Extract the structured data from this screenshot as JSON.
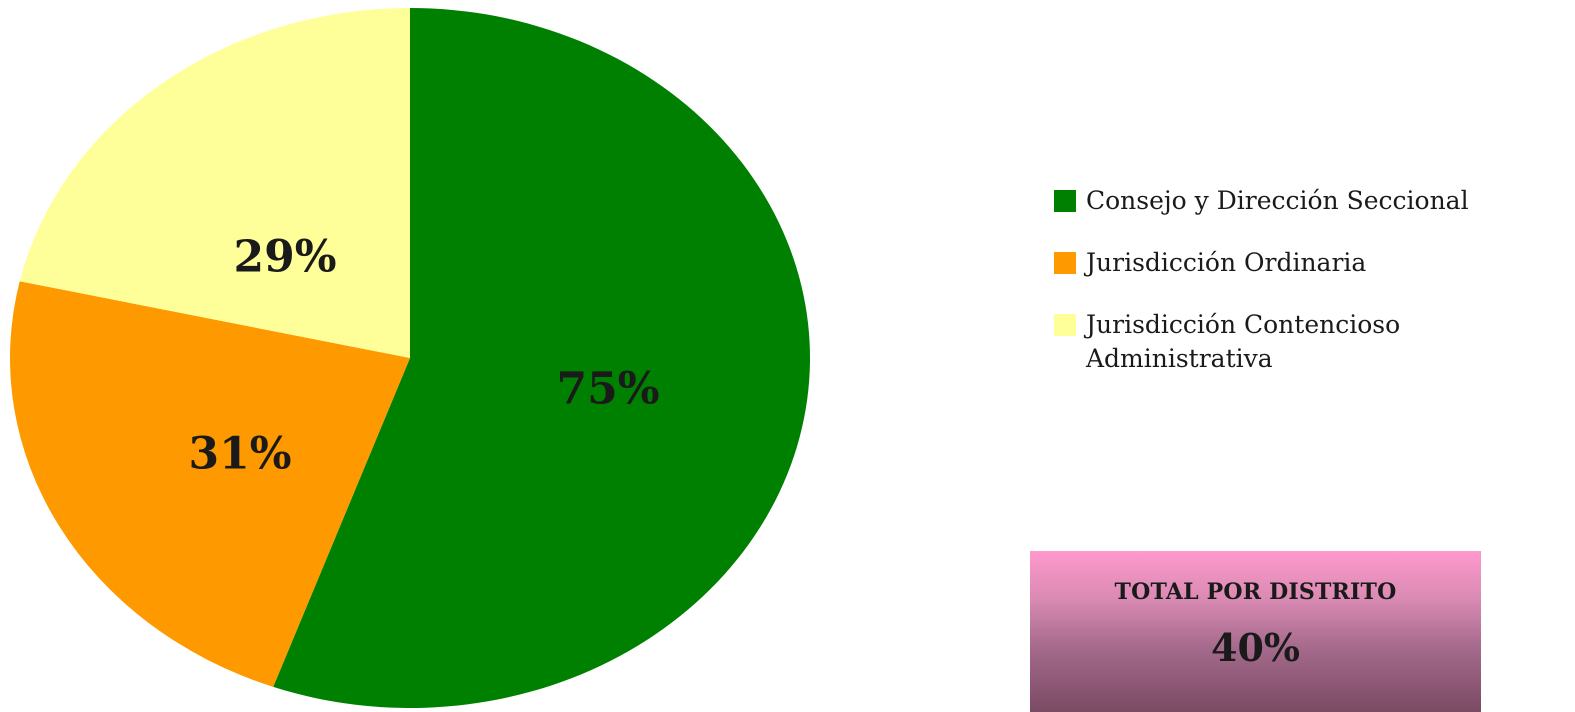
{
  "chart_data": {
    "type": "pie",
    "title": "",
    "slices": [
      {
        "label": "Consejo y Dirección Seccional",
        "value": 75,
        "display": "75%",
        "color": "#008000"
      },
      {
        "label": "Jurisdicción Ordinaria",
        "value": 31,
        "display": "31%",
        "color": "#ff9900"
      },
      {
        "label": "Jurisdicción Contencioso Administrativa",
        "value": 29,
        "display": "29%",
        "color": "#ffff99"
      }
    ],
    "legend_placement": "right"
  },
  "legend": {
    "items": [
      {
        "label": "Consejo y Dirección Seccional",
        "color": "#008000"
      },
      {
        "label": "Jurisdicción Ordinaria",
        "color": "#ff9900"
      },
      {
        "label": "Jurisdicción Contencioso Administrativa",
        "color": "#ffff99"
      }
    ]
  },
  "total_box": {
    "title": "TOTAL POR DISTRITO",
    "value": "40%"
  }
}
